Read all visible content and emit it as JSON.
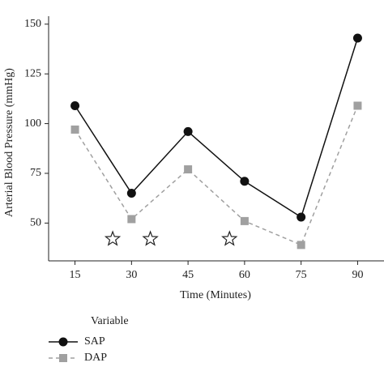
{
  "chart_data": {
    "type": "line",
    "x_label": "Time (Minutes)",
    "y_label": "Arterial Blood Pressure (mmHg)",
    "x": [
      15,
      30,
      45,
      60,
      75,
      90
    ],
    "series": [
      {
        "name": "SAP",
        "color": "#111111",
        "dashed": false,
        "marker": "circle",
        "values": [
          109,
          65,
          96,
          71,
          53,
          143
        ]
      },
      {
        "name": "DAP",
        "color": "#a0a0a0",
        "dashed": true,
        "marker": "square",
        "values": [
          97,
          52,
          77,
          51,
          39,
          109
        ]
      }
    ],
    "stars": {
      "x": [
        25,
        35,
        56
      ],
      "y": [
        42,
        42,
        42
      ]
    },
    "xlim": [
      8,
      97
    ],
    "xticks": [
      15,
      30,
      45,
      60,
      75,
      90
    ],
    "ylim": [
      31,
      154
    ],
    "yticks": [
      50,
      75,
      100,
      125,
      150
    ],
    "legend_title": "Variable"
  }
}
